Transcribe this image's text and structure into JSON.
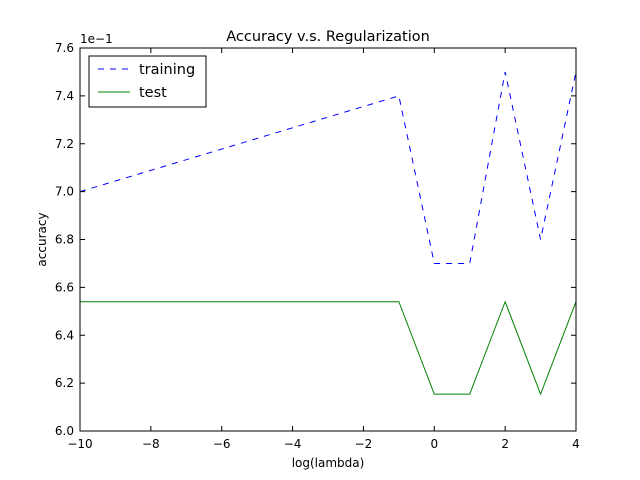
{
  "chart_data": {
    "type": "line",
    "title": "Accuracy v.s. Regularization",
    "xlabel": "log(lambda)",
    "ylabel": "accuracy",
    "y_offset_label": "1e−1",
    "xlim": [
      -10,
      4
    ],
    "ylim": [
      6.0,
      7.6
    ],
    "xticks": [
      -10,
      -8,
      -6,
      -4,
      -2,
      0,
      2,
      4
    ],
    "xtick_labels": [
      "−10",
      "−8",
      "−6",
      "−4",
      "−2",
      "0",
      "2",
      "4"
    ],
    "yticks": [
      6.0,
      6.2,
      6.4,
      6.6,
      6.8,
      7.0,
      7.2,
      7.4,
      7.6
    ],
    "ytick_labels": [
      "6.0",
      "6.2",
      "6.4",
      "6.6",
      "6.8",
      "7.0",
      "7.2",
      "7.4",
      "7.6"
    ],
    "grid": false,
    "legend_position": "top-left",
    "x": [
      -10,
      -1,
      0,
      1,
      2,
      3,
      4
    ],
    "series": [
      {
        "name": "training",
        "color": "#0000ff",
        "style": "dashed",
        "values": [
          7.0,
          7.4,
          6.7,
          6.7,
          7.5,
          6.8,
          7.5
        ]
      },
      {
        "name": "test",
        "color": "#008000",
        "style": "solid",
        "values": [
          6.54,
          6.54,
          6.154,
          6.154,
          6.54,
          6.154,
          6.54
        ]
      }
    ]
  }
}
